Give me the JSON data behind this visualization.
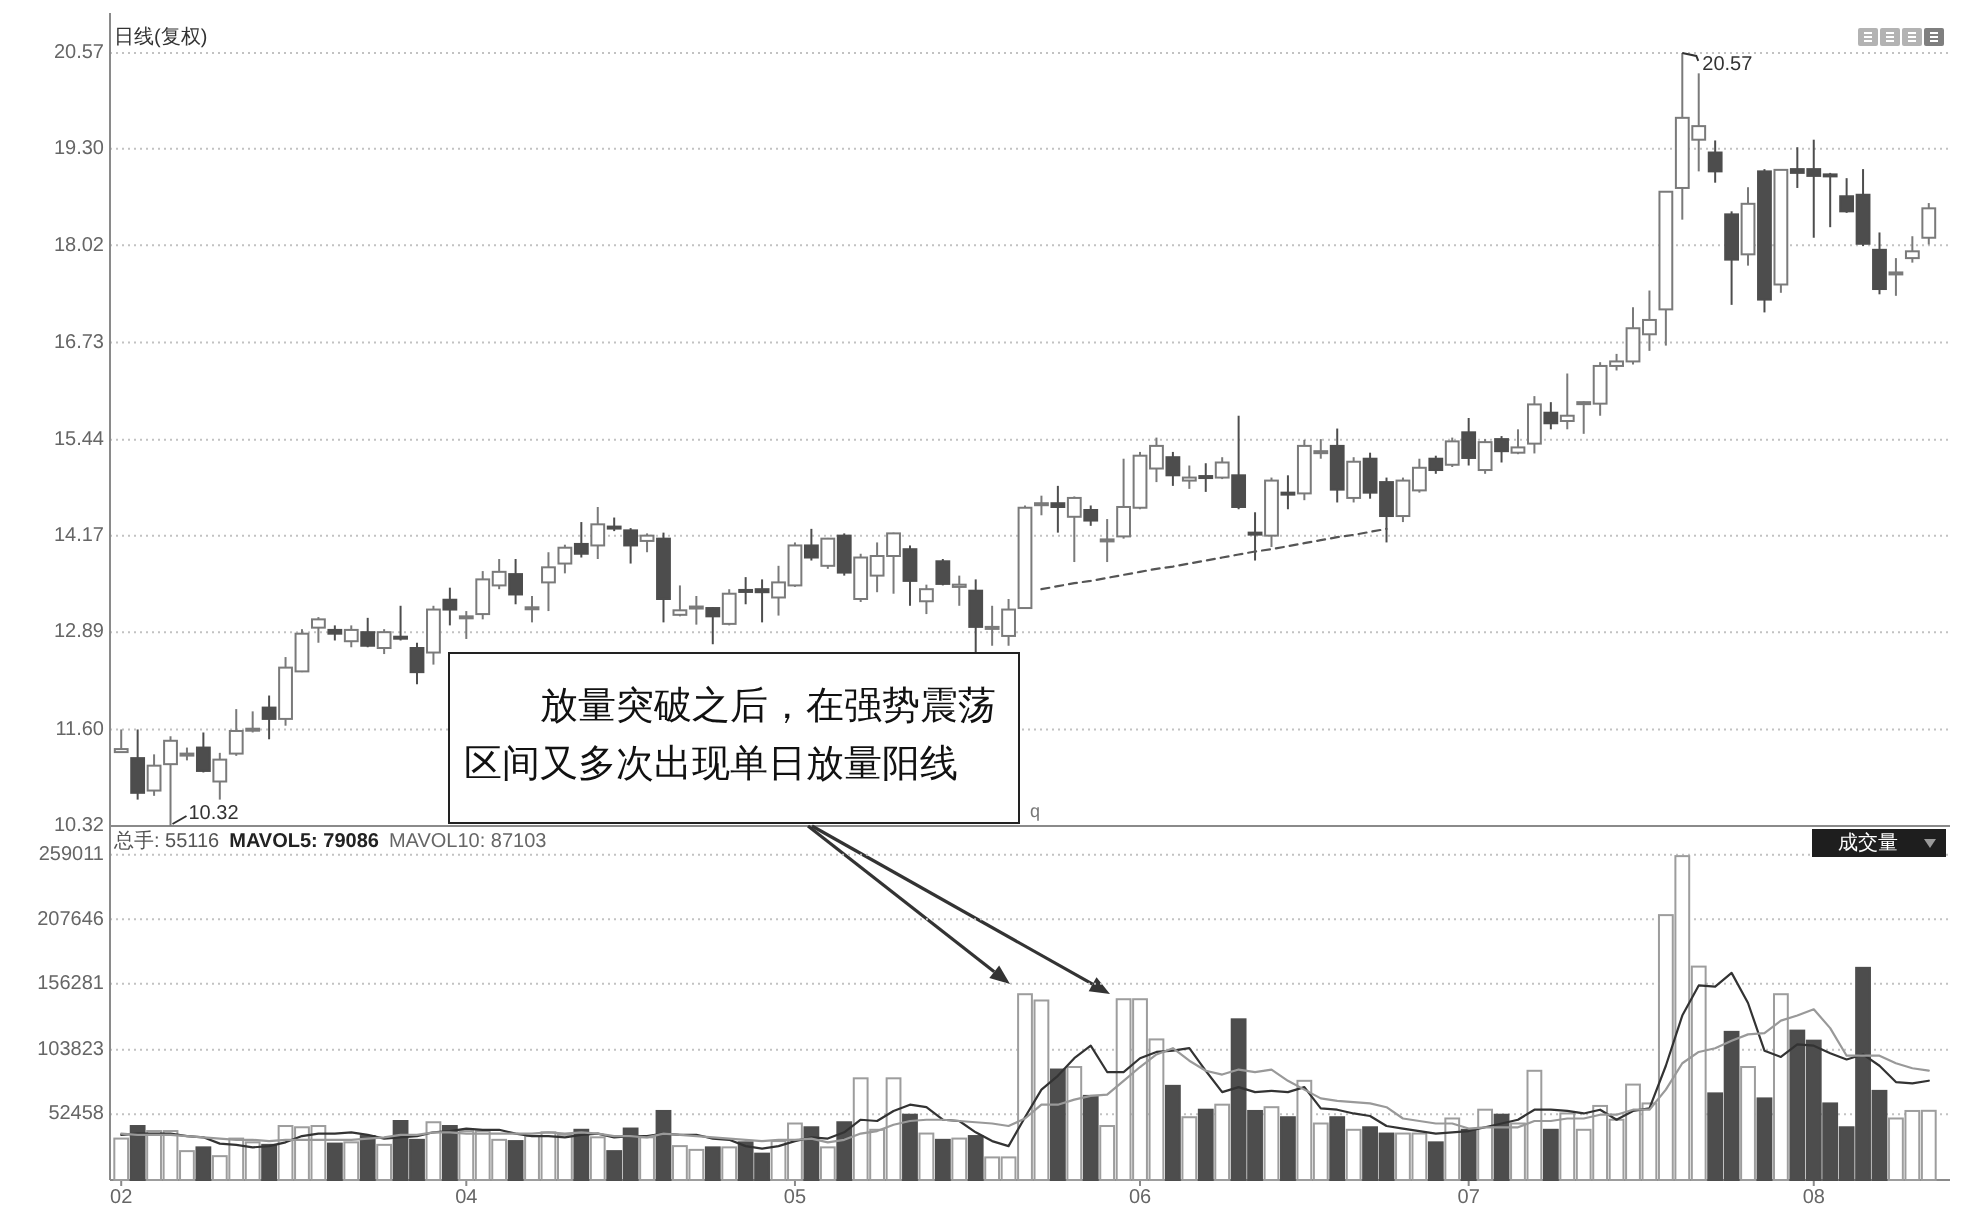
{
  "chart_data": [
    {
      "type": "candlestick",
      "categories": [
        "02",
        null,
        null,
        null,
        null,
        null,
        null,
        null,
        null,
        null,
        null,
        null,
        null,
        null,
        null,
        null,
        null,
        null,
        null,
        null,
        null,
        "04",
        null,
        null,
        null,
        null,
        null,
        null,
        null,
        null,
        null,
        null,
        null,
        null,
        null,
        null,
        null,
        null,
        null,
        null,
        null,
        "05",
        null,
        null,
        null,
        null,
        null,
        null,
        null,
        null,
        null,
        null,
        null,
        null,
        null,
        null,
        null,
        null,
        null,
        null,
        null,
        null,
        "06",
        null,
        null,
        null,
        null,
        null,
        null,
        null,
        null,
        null,
        null,
        null,
        null,
        null,
        null,
        null,
        null,
        null,
        null,
        null,
        "07",
        null,
        null,
        null,
        null,
        null,
        null,
        null,
        null,
        null,
        null,
        null,
        null,
        null,
        null,
        null,
        null,
        null,
        null,
        null,
        null,
        "08",
        null,
        null,
        null,
        null,
        null,
        null,
        null
      ],
      "ohlc": [
        [
          11.3,
          11.6,
          11.29,
          11.34
        ],
        [
          11.22,
          11.6,
          10.67,
          10.76
        ],
        [
          10.79,
          11.27,
          10.72,
          11.12
        ],
        [
          11.14,
          11.51,
          10.32,
          11.45
        ],
        [
          11.26,
          11.36,
          11.19,
          11.28
        ],
        [
          11.36,
          11.56,
          11.03,
          11.05
        ],
        [
          10.91,
          11.29,
          10.67,
          11.2
        ],
        [
          11.28,
          11.87,
          11.25,
          11.58
        ],
        [
          11.59,
          11.84,
          11.56,
          11.61
        ],
        [
          11.89,
          12.05,
          11.47,
          11.74
        ],
        [
          11.74,
          12.56,
          11.65,
          12.42
        ],
        [
          12.37,
          12.93,
          12.36,
          12.87
        ],
        [
          12.95,
          13.09,
          12.75,
          13.06
        ],
        [
          12.92,
          12.98,
          12.78,
          12.87
        ],
        [
          12.77,
          12.98,
          12.69,
          12.92
        ],
        [
          12.89,
          13.08,
          12.69,
          12.71
        ],
        [
          12.68,
          12.93,
          12.6,
          12.89
        ],
        [
          12.83,
          13.24,
          12.78,
          12.81
        ],
        [
          12.68,
          12.75,
          12.2,
          12.36
        ],
        [
          12.62,
          13.24,
          12.46,
          13.19
        ],
        [
          13.32,
          13.48,
          12.98,
          13.19
        ],
        [
          13.08,
          13.17,
          12.8,
          13.1
        ],
        [
          13.13,
          13.7,
          13.06,
          13.59
        ],
        [
          13.51,
          13.86,
          13.46,
          13.69
        ],
        [
          13.66,
          13.86,
          13.26,
          13.39
        ],
        [
          13.2,
          13.37,
          13.02,
          13.22
        ],
        [
          13.55,
          13.95,
          13.17,
          13.75
        ],
        [
          13.8,
          14.05,
          13.67,
          14.01
        ],
        [
          14.06,
          14.35,
          13.88,
          13.93
        ],
        [
          14.04,
          14.55,
          13.86,
          14.32
        ],
        [
          14.29,
          14.41,
          14.23,
          14.27
        ],
        [
          14.24,
          14.27,
          13.8,
          14.04
        ],
        [
          14.1,
          14.2,
          13.95,
          14.17
        ],
        [
          14.13,
          14.21,
          13.02,
          13.33
        ],
        [
          13.12,
          13.51,
          13.1,
          13.18
        ],
        [
          13.21,
          13.37,
          12.99,
          13.23
        ],
        [
          13.21,
          13.22,
          12.73,
          13.1
        ],
        [
          13.0,
          13.46,
          12.98,
          13.4
        ],
        [
          13.45,
          13.62,
          13.26,
          13.43
        ],
        [
          13.46,
          13.59,
          13.02,
          13.42
        ],
        [
          13.35,
          13.77,
          13.11,
          13.55
        ],
        [
          13.51,
          14.08,
          13.49,
          14.04
        ],
        [
          14.04,
          14.26,
          13.84,
          13.88
        ],
        [
          13.77,
          14.14,
          13.73,
          14.13
        ],
        [
          14.17,
          14.2,
          13.64,
          13.68
        ],
        [
          13.33,
          13.93,
          13.29,
          13.88
        ],
        [
          13.64,
          14.08,
          13.42,
          13.9
        ],
        [
          13.9,
          14.21,
          13.4,
          14.2
        ],
        [
          13.99,
          14.04,
          13.24,
          13.57
        ],
        [
          13.3,
          13.52,
          13.13,
          13.46
        ],
        [
          13.83,
          13.86,
          13.51,
          13.53
        ],
        [
          13.49,
          13.64,
          13.24,
          13.52
        ],
        [
          13.44,
          13.59,
          12.62,
          12.96
        ],
        [
          12.94,
          13.24,
          12.71,
          12.96
        ],
        [
          12.84,
          13.33,
          12.71,
          13.19
        ],
        [
          13.21,
          14.57,
          13.2,
          14.54
        ],
        [
          14.58,
          14.7,
          14.44,
          14.6
        ],
        [
          14.6,
          14.83,
          14.21,
          14.55
        ],
        [
          14.42,
          14.69,
          13.82,
          14.67
        ],
        [
          14.51,
          14.57,
          14.3,
          14.37
        ],
        [
          14.1,
          14.39,
          13.82,
          14.12
        ],
        [
          14.16,
          15.19,
          14.13,
          14.55
        ],
        [
          14.54,
          15.28,
          14.52,
          15.23
        ],
        [
          15.06,
          15.47,
          14.88,
          15.36
        ],
        [
          15.21,
          15.28,
          14.83,
          14.97
        ],
        [
          14.9,
          15.1,
          14.79,
          14.94
        ],
        [
          14.96,
          15.13,
          14.75,
          14.94
        ],
        [
          14.94,
          15.21,
          14.92,
          15.14
        ],
        [
          14.97,
          15.76,
          14.52,
          14.55
        ],
        [
          14.21,
          14.48,
          13.84,
          14.19
        ],
        [
          14.17,
          14.94,
          14.02,
          14.9
        ],
        [
          14.74,
          14.97,
          14.52,
          14.72
        ],
        [
          14.73,
          15.44,
          14.64,
          15.36
        ],
        [
          15.27,
          15.45,
          15.19,
          15.29
        ],
        [
          15.36,
          15.59,
          14.61,
          14.78
        ],
        [
          14.67,
          15.21,
          14.61,
          15.15
        ],
        [
          15.19,
          15.27,
          14.66,
          14.74
        ],
        [
          14.88,
          14.94,
          14.08,
          14.43
        ],
        [
          14.43,
          14.94,
          14.35,
          14.9
        ],
        [
          14.77,
          15.19,
          14.74,
          15.07
        ],
        [
          15.19,
          15.23,
          14.99,
          15.04
        ],
        [
          15.11,
          15.47,
          15.08,
          15.42
        ],
        [
          15.54,
          15.73,
          15.1,
          15.2
        ],
        [
          15.04,
          15.45,
          14.99,
          15.41
        ],
        [
          15.45,
          15.49,
          15.14,
          15.29
        ],
        [
          15.27,
          15.58,
          15.25,
          15.34
        ],
        [
          15.39,
          16.02,
          15.26,
          15.91
        ],
        [
          15.8,
          15.94,
          15.58,
          15.66
        ],
        [
          15.69,
          16.32,
          15.58,
          15.76
        ],
        [
          15.93,
          15.95,
          15.52,
          15.94
        ],
        [
          15.92,
          16.47,
          15.76,
          16.42
        ],
        [
          16.42,
          16.58,
          16.36,
          16.48
        ],
        [
          16.48,
          17.2,
          16.44,
          16.92
        ],
        [
          16.84,
          17.42,
          16.62,
          17.03
        ],
        [
          17.17,
          18.73,
          16.69,
          18.73
        ],
        [
          18.78,
          20.57,
          18.36,
          19.71
        ],
        [
          19.42,
          20.3,
          19.0,
          19.6
        ],
        [
          19.25,
          19.41,
          18.85,
          19.0
        ],
        [
          18.43,
          18.47,
          17.23,
          17.83
        ],
        [
          17.9,
          18.79,
          17.75,
          18.57
        ],
        [
          19.0,
          19.03,
          17.13,
          17.3
        ],
        [
          17.5,
          19.03,
          17.39,
          19.02
        ],
        [
          19.03,
          19.32,
          18.78,
          18.98
        ],
        [
          19.03,
          19.42,
          18.12,
          18.94
        ],
        [
          18.96,
          18.98,
          18.26,
          18.94
        ],
        [
          18.67,
          18.91,
          18.45,
          18.47
        ],
        [
          18.69,
          19.03,
          18.01,
          18.04
        ],
        [
          17.96,
          18.19,
          17.37,
          17.44
        ],
        [
          17.65,
          17.85,
          17.35,
          17.66
        ],
        [
          17.85,
          18.14,
          17.79,
          17.94
        ],
        [
          18.12,
          18.58,
          18.03,
          18.51
        ]
      ],
      "series": [
        {
          "type": "line",
          "color": "#555555",
          "line_style": "dashed",
          "values": [
            null,
            null,
            null,
            null,
            null,
            null,
            null,
            null,
            null,
            null,
            null,
            null,
            null,
            null,
            null,
            null,
            null,
            null,
            null,
            null,
            null,
            null,
            null,
            null,
            null,
            null,
            null,
            null,
            null,
            null,
            null,
            null,
            null,
            null,
            null,
            null,
            null,
            null,
            null,
            null,
            null,
            null,
            null,
            null,
            null,
            null,
            null,
            null,
            null,
            null,
            null,
            null,
            null,
            null,
            null,
            null,
            13.46,
            13.5,
            13.54,
            13.57,
            13.61,
            13.65,
            13.69,
            13.73,
            13.76,
            13.8,
            13.84,
            13.88,
            13.92,
            13.96,
            13.99,
            14.03,
            14.07,
            14.11,
            14.15,
            14.18,
            14.22,
            14.26,
            null,
            null,
            null,
            null,
            null,
            null,
            null,
            null,
            null,
            null,
            null,
            null,
            null,
            null,
            null,
            null,
            null,
            null,
            null,
            null,
            null,
            null,
            null,
            null,
            null,
            null,
            null,
            null,
            null,
            null,
            null,
            null,
            null
          ]
        }
      ],
      "ylim": [
        10.32,
        21.1
      ],
      "yticks": [
        10.32,
        {
          "value": 11.6,
          "label": "11.60"
        },
        12.89,
        14.17,
        15.44,
        16.73,
        18.02,
        {
          "value": 19.3,
          "label": "19.30"
        },
        20.57
      ],
      "grid": "y",
      "tick_labels": "y",
      "annotations": [
        "日线(复权)",
        "20.57",
        "放量突破之后，在强势震荡区间又多次出现单日放量阳线",
        "10.32",
        "q"
      ]
    },
    {
      "type": "bar",
      "categories": [
        "02",
        null,
        null,
        null,
        null,
        null,
        null,
        null,
        null,
        null,
        null,
        null,
        null,
        null,
        null,
        null,
        null,
        null,
        null,
        null,
        null,
        "04",
        null,
        null,
        null,
        null,
        null,
        null,
        null,
        null,
        null,
        null,
        null,
        null,
        null,
        null,
        null,
        null,
        null,
        null,
        null,
        "05",
        null,
        null,
        null,
        null,
        null,
        null,
        null,
        null,
        null,
        null,
        null,
        null,
        null,
        null,
        null,
        null,
        null,
        null,
        null,
        null,
        "06",
        null,
        null,
        null,
        null,
        null,
        null,
        null,
        null,
        null,
        null,
        null,
        null,
        null,
        null,
        null,
        null,
        null,
        null,
        null,
        "07",
        null,
        null,
        null,
        null,
        null,
        null,
        null,
        null,
        null,
        null,
        null,
        null,
        null,
        null,
        null,
        null,
        null,
        null,
        null,
        null,
        "08",
        null,
        null,
        null,
        null,
        null,
        null,
        null
      ],
      "series": [
        {
          "type": "bar",
          "values": [
            33000,
            43000,
            39000,
            39000,
            23000,
            26000,
            19000,
            33000,
            30000,
            28000,
            43000,
            42000,
            43000,
            29000,
            30000,
            35000,
            28000,
            47000,
            32000,
            46000,
            43000,
            39000,
            39000,
            32000,
            31000,
            35000,
            38000,
            36000,
            40000,
            34000,
            23000,
            41000,
            34000,
            55000,
            27000,
            24000,
            26000,
            26000,
            30000,
            21000,
            31000,
            45000,
            42000,
            26000,
            46000,
            81000,
            40000,
            81000,
            52000,
            37000,
            32000,
            33000,
            35000,
            18000,
            18000,
            148000,
            143000,
            88000,
            90000,
            67000,
            43000,
            144000,
            144000,
            112000,
            75000,
            50000,
            56000,
            60000,
            128000,
            55000,
            58000,
            50000,
            79000,
            45000,
            50000,
            40000,
            42000,
            37000,
            37000,
            37000,
            30000,
            49000,
            40000,
            56000,
            52000,
            45000,
            87000,
            40000,
            53000,
            40000,
            59000,
            48000,
            76000,
            61000,
            211000,
            258000,
            170000,
            69000,
            118000,
            90000,
            65000,
            148000,
            119000,
            111000,
            61000,
            42000,
            169000,
            71000,
            49000,
            55000,
            55116
          ],
          "colors": [
            "#ffffff",
            "#4d4d4d",
            "#ffffff",
            "#ffffff",
            "#ffffff",
            "#4d4d4d",
            "#ffffff",
            "#ffffff",
            "#ffffff",
            "#4d4d4d",
            "#ffffff",
            "#ffffff",
            "#ffffff",
            "#4d4d4d",
            "#ffffff",
            "#4d4d4d",
            "#ffffff",
            "#4d4d4d",
            "#4d4d4d",
            "#ffffff",
            "#4d4d4d",
            "#ffffff",
            "#ffffff",
            "#ffffff",
            "#4d4d4d",
            "#ffffff",
            "#ffffff",
            "#ffffff",
            "#4d4d4d",
            "#ffffff",
            "#4d4d4d",
            "#4d4d4d",
            "#ffffff",
            "#4d4d4d",
            "#ffffff",
            "#ffffff",
            "#4d4d4d",
            "#ffffff",
            "#4d4d4d",
            "#4d4d4d",
            "#ffffff",
            "#ffffff",
            "#4d4d4d",
            "#ffffff",
            "#4d4d4d",
            "#ffffff",
            "#ffffff",
            "#ffffff",
            "#4d4d4d",
            "#ffffff",
            "#4d4d4d",
            "#ffffff",
            "#4d4d4d",
            "#ffffff",
            "#ffffff",
            "#ffffff",
            "#ffffff",
            "#4d4d4d",
            "#ffffff",
            "#4d4d4d",
            "#ffffff",
            "#ffffff",
            "#ffffff",
            "#ffffff",
            "#4d4d4d",
            "#ffffff",
            "#4d4d4d",
            "#ffffff",
            "#4d4d4d",
            "#4d4d4d",
            "#ffffff",
            "#4d4d4d",
            "#ffffff",
            "#ffffff",
            "#4d4d4d",
            "#ffffff",
            "#4d4d4d",
            "#4d4d4d",
            "#ffffff",
            "#ffffff",
            "#4d4d4d",
            "#ffffff",
            "#4d4d4d",
            "#ffffff",
            "#4d4d4d",
            "#ffffff",
            "#ffffff",
            "#4d4d4d",
            "#ffffff",
            "#ffffff",
            "#ffffff",
            "#ffffff",
            "#ffffff",
            "#ffffff",
            "#ffffff",
            "#ffffff",
            "#ffffff",
            "#4d4d4d",
            "#4d4d4d",
            "#ffffff",
            "#4d4d4d",
            "#ffffff",
            "#4d4d4d",
            "#4d4d4d",
            "#4d4d4d",
            "#4d4d4d",
            "#4d4d4d",
            "#4d4d4d",
            "#ffffff",
            "#ffffff",
            "#ffffff"
          ]
        },
        {
          "type": "line",
          "color": "#333333",
          "values": [
            36000,
            37000,
            37000,
            37000,
            35000,
            34000,
            29000,
            28000,
            26000,
            27000,
            30000,
            35000,
            37000,
            37000,
            38000,
            36000,
            33000,
            34000,
            35000,
            38000,
            39000,
            41000,
            40000,
            40000,
            37000,
            35000,
            35000,
            34000,
            36000,
            37000,
            34000,
            35000,
            35000,
            37000,
            36000,
            36000,
            33000,
            32000,
            27000,
            25000,
            27000,
            31000,
            34000,
            33000,
            38000,
            48000,
            47000,
            55000,
            60000,
            58000,
            48000,
            47000,
            38000,
            31000,
            27000,
            50000,
            72000,
            83000,
            97000,
            107000,
            86000,
            86000,
            97000,
            102000,
            103000,
            105000,
            87000,
            70000,
            74000,
            70000,
            71000,
            70000,
            74000,
            57000,
            56000,
            53000,
            51000,
            43000,
            41000,
            39000,
            37000,
            38000,
            39000,
            42000,
            45000,
            48000,
            56000,
            56000,
            55000,
            53000,
            56000,
            48000,
            55000,
            57000,
            91000,
            131000,
            155000,
            154000,
            165000,
            141000,
            103000,
            98000,
            108000,
            107000,
            101000,
            96000,
            100000,
            91000,
            78000,
            77000,
            79086
          ]
        },
        {
          "type": "line",
          "color": "#999999",
          "values": [
            37000,
            36000,
            36000,
            36000,
            35000,
            34000,
            33000,
            32000,
            32000,
            31000,
            32000,
            32000,
            32000,
            32000,
            32000,
            33000,
            34000,
            36000,
            36000,
            38000,
            38000,
            37000,
            37000,
            37000,
            37000,
            37000,
            38000,
            37000,
            38000,
            37000,
            35000,
            35000,
            34000,
            37000,
            36000,
            35000,
            34000,
            33000,
            32000,
            31000,
            32000,
            32000,
            33000,
            30000,
            32000,
            37000,
            39000,
            44000,
            47000,
            48000,
            48000,
            47000,
            46000,
            45000,
            43000,
            49000,
            60000,
            60000,
            64000,
            67000,
            68000,
            79000,
            90000,
            100000,
            105000,
            95000,
            87000,
            84000,
            88000,
            86000,
            88000,
            79000,
            72000,
            65000,
            63000,
            62000,
            61000,
            58000,
            49000,
            47000,
            45000,
            45000,
            41000,
            42000,
            42000,
            42000,
            47000,
            47000,
            49000,
            49000,
            52000,
            52000,
            56000,
            56000,
            72000,
            93000,
            102000,
            105000,
            111000,
            116000,
            117000,
            127000,
            131000,
            136000,
            121000,
            99000,
            99000,
            99000,
            93000,
            89000,
            87103
          ]
        }
      ],
      "ylim": [
        0,
        282000
      ],
      "yticks": [
        52458,
        103823,
        156281,
        207646,
        259011
      ],
      "grid": "y",
      "annotations": [
        "总手: 55116",
        "MAVOL5: 79086",
        "MAVOL10: 87103",
        "成交量"
      ]
    }
  ]
}
